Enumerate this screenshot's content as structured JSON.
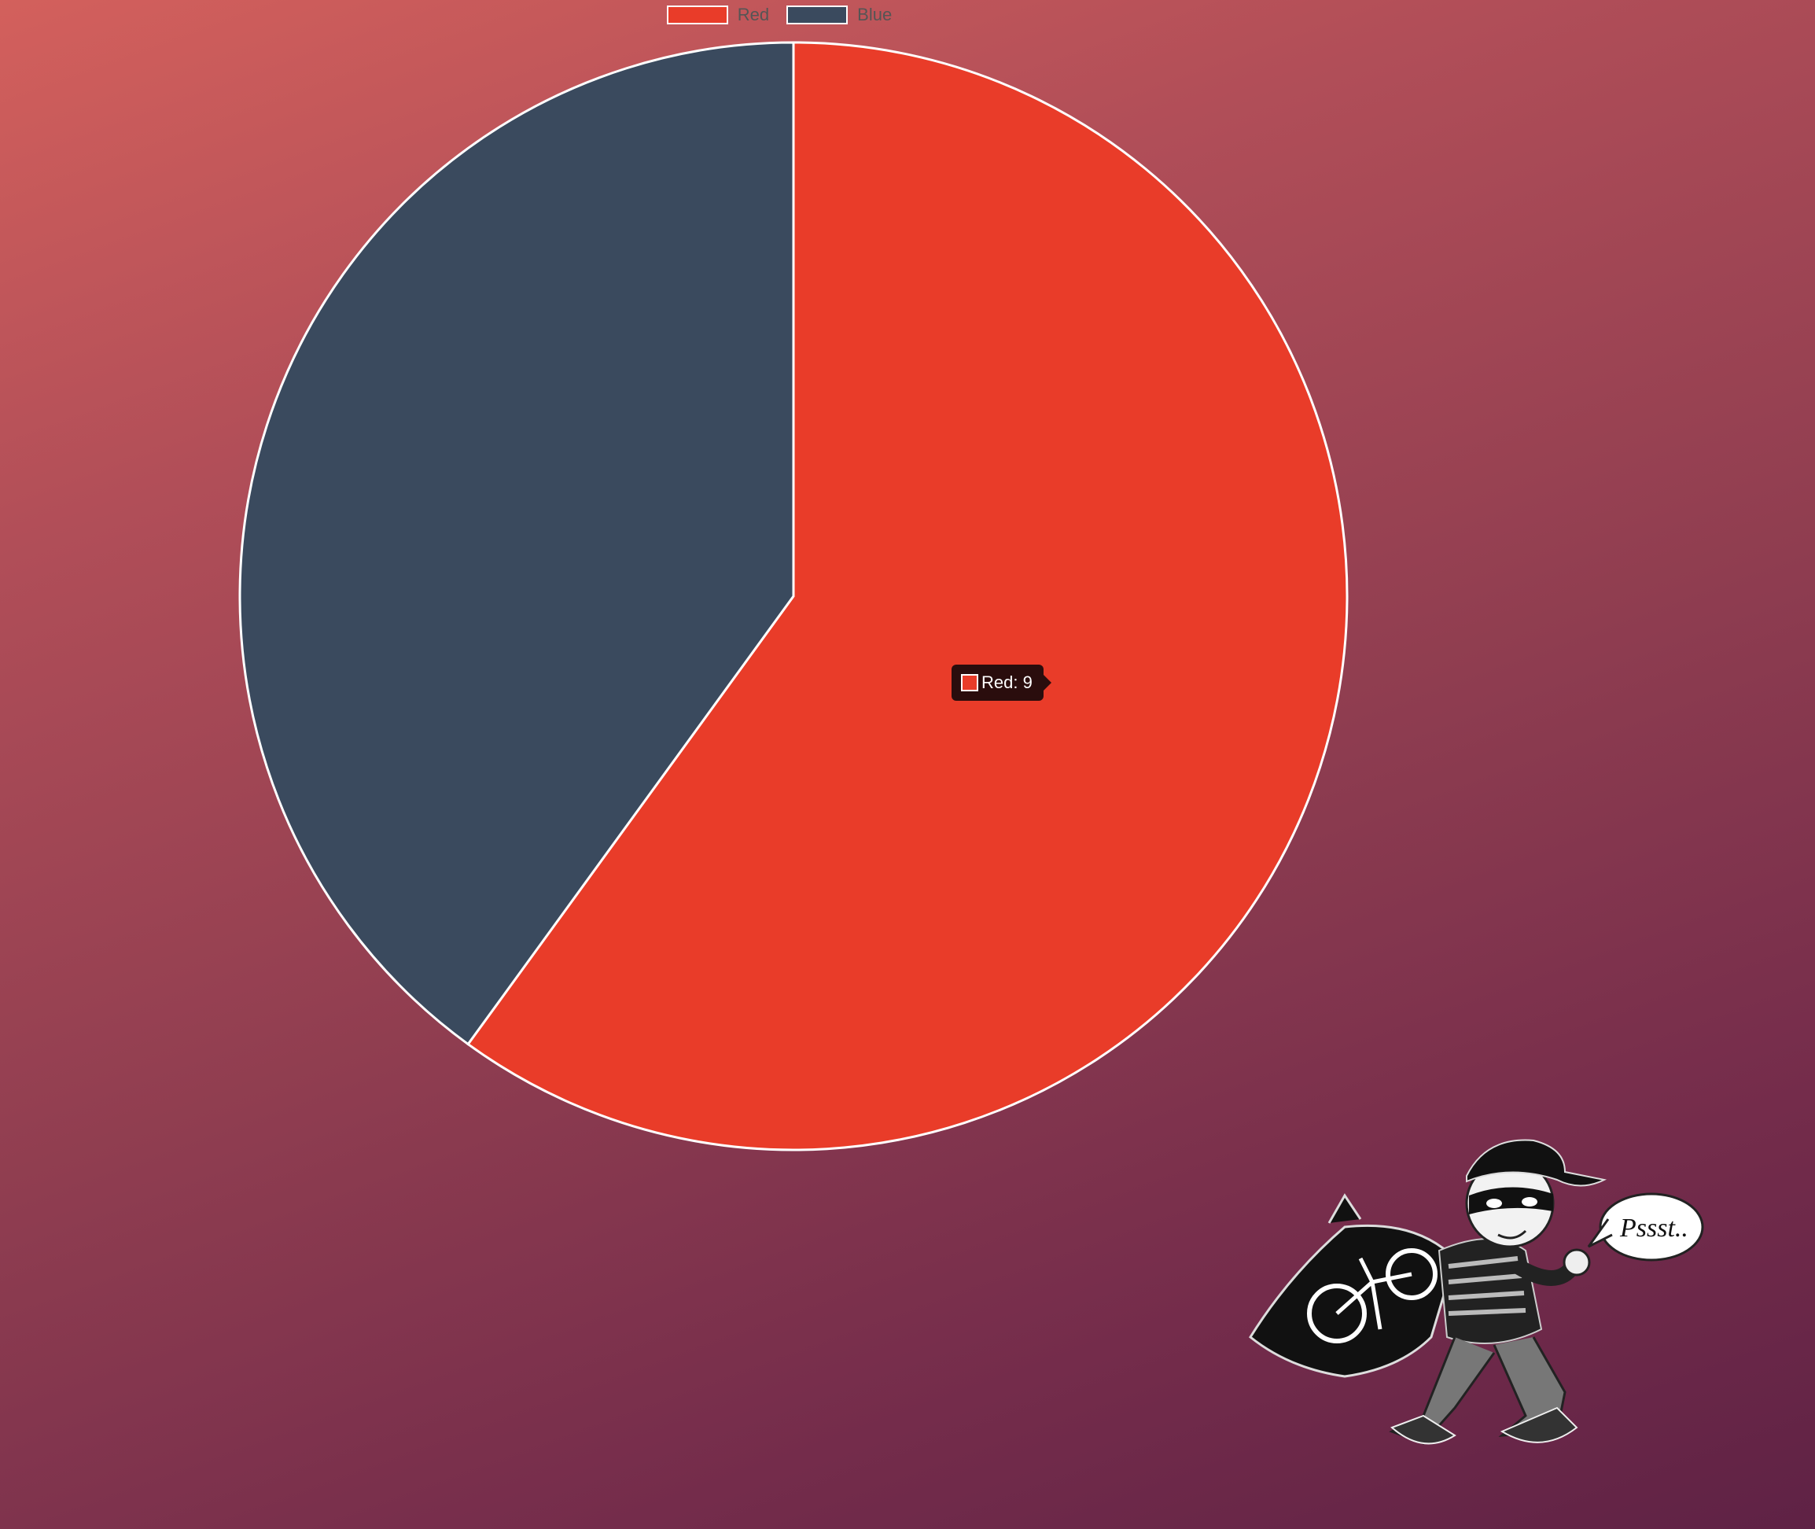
{
  "chart_data": {
    "type": "pie",
    "categories": [
      "Red",
      "Blue"
    ],
    "values": [
      9,
      6
    ],
    "colors": [
      "#e93c29",
      "#3a4a5e"
    ],
    "legend_placement": "top",
    "start_angle_deg": 0
  },
  "legend": {
    "items": [
      {
        "label": "Red",
        "color": "#e93c29"
      },
      {
        "label": "Blue",
        "color": "#3a4a5e"
      }
    ]
  },
  "tooltip": {
    "label": "Red: 9",
    "color": "#e93c29"
  },
  "mascot": {
    "icon": "burglar-mascot-icon",
    "speech": "Pssst.."
  }
}
